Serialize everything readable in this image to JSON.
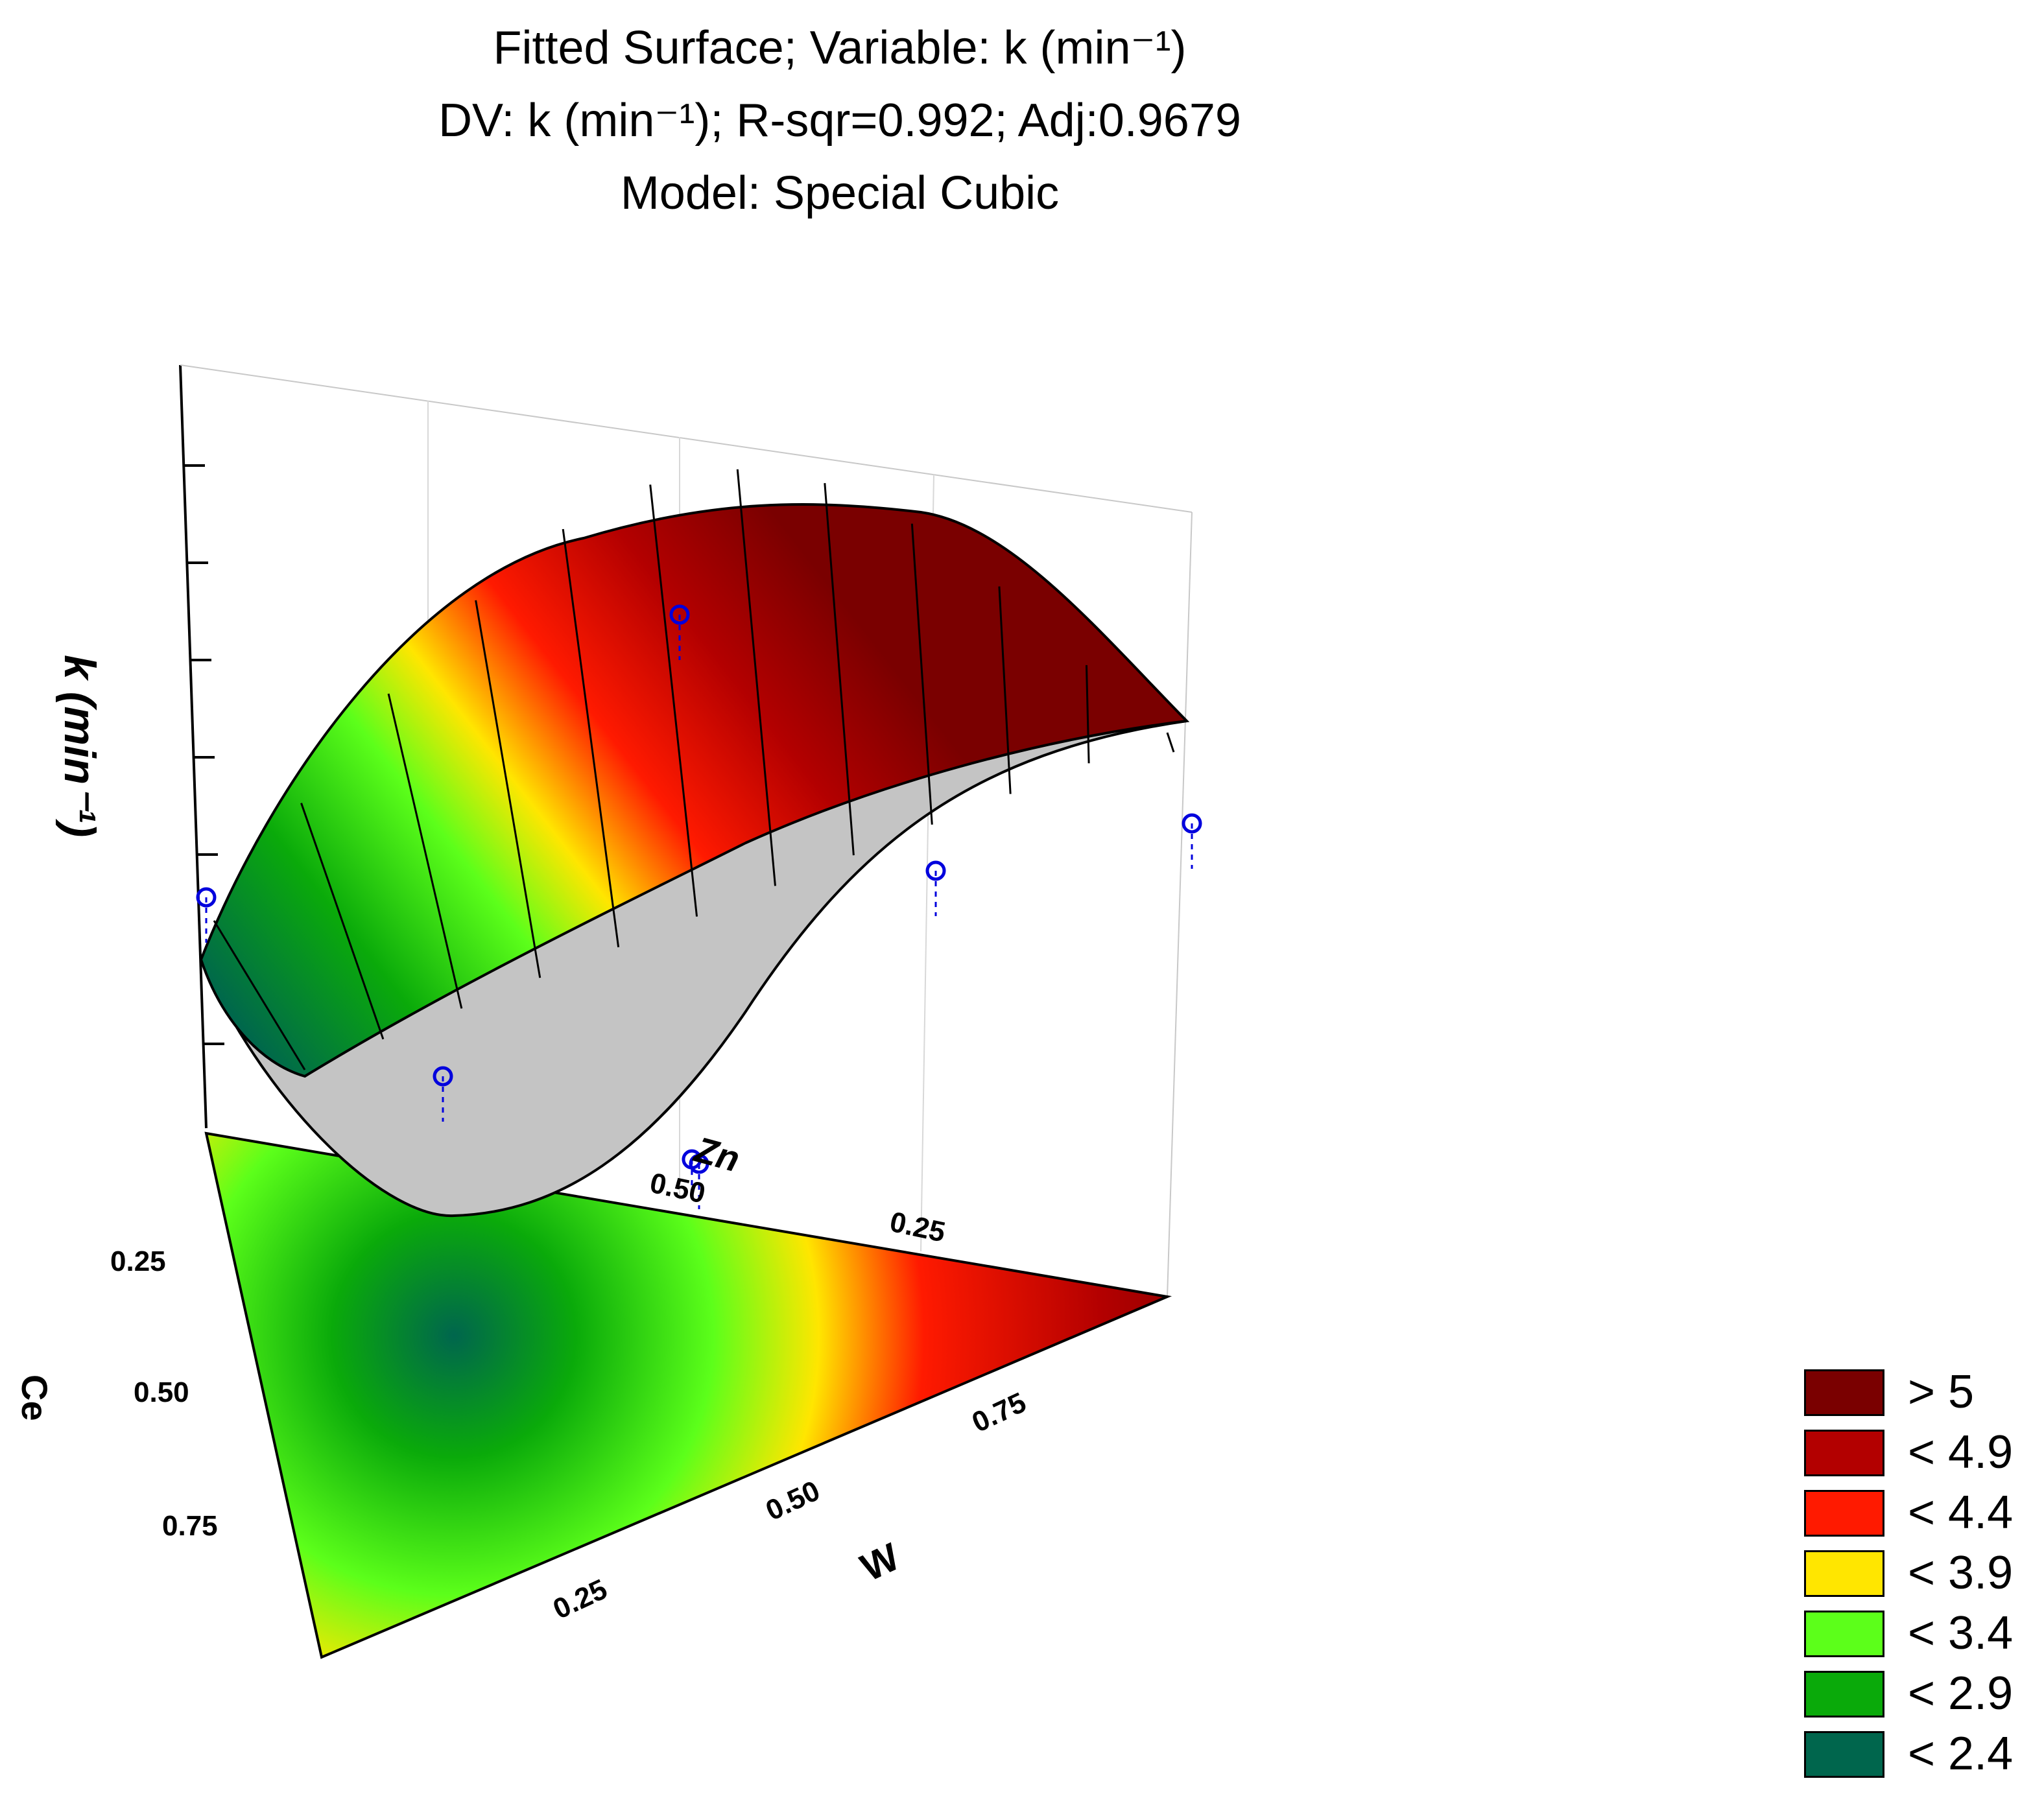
{
  "chart_data": {
    "type": "surface",
    "title_lines": [
      "Fitted Surface; Variable: k (min⁻¹)",
      "DV: k (min⁻¹); R-sqr=0.992; Adj:0.9679",
      "Model: Special Cubic"
    ],
    "zlabel": "k (min⁻¹)",
    "axes": {
      "zn": {
        "label": "Zn",
        "ticks": [
          "0.50",
          "0.25"
        ]
      },
      "ce": {
        "label": "Ce",
        "ticks": [
          "0.25",
          "0.50",
          "0.75"
        ]
      },
      "w": {
        "label": "W",
        "ticks": [
          "0.25",
          "0.50",
          "0.75"
        ]
      }
    },
    "legend": [
      {
        "label": "> 5",
        "color": "#7a0000"
      },
      {
        "label": "< 4.9",
        "color": "#b30000"
      },
      {
        "label": "< 4.4",
        "color": "#ff1a00"
      },
      {
        "label": "< 3.9",
        "color": "#ffe600"
      },
      {
        "label": "< 3.4",
        "color": "#5cff1a"
      },
      {
        "label": "< 2.9",
        "color": "#0aaa0a"
      },
      {
        "label": "< 2.4",
        "color": "#00664d"
      }
    ],
    "design_points": [
      {
        "zn": 1.0,
        "ce": 0.0,
        "w": 0.0,
        "k": 5.2
      },
      {
        "zn": 0.0,
        "ce": 1.0,
        "w": 0.0,
        "k": 3.4
      },
      {
        "zn": 0.0,
        "ce": 0.0,
        "w": 1.0,
        "k": 4.8
      },
      {
        "zn": 0.5,
        "ce": 0.5,
        "w": 0.0,
        "k": 2.4
      },
      {
        "zn": 0.5,
        "ce": 0.0,
        "w": 0.5,
        "k": 4.1
      },
      {
        "zn": 0.0,
        "ce": 0.5,
        "w": 0.5,
        "k": 2.3
      },
      {
        "zn": 0.333,
        "ce": 0.333,
        "w": 0.333,
        "k": 2.2
      }
    ]
  }
}
